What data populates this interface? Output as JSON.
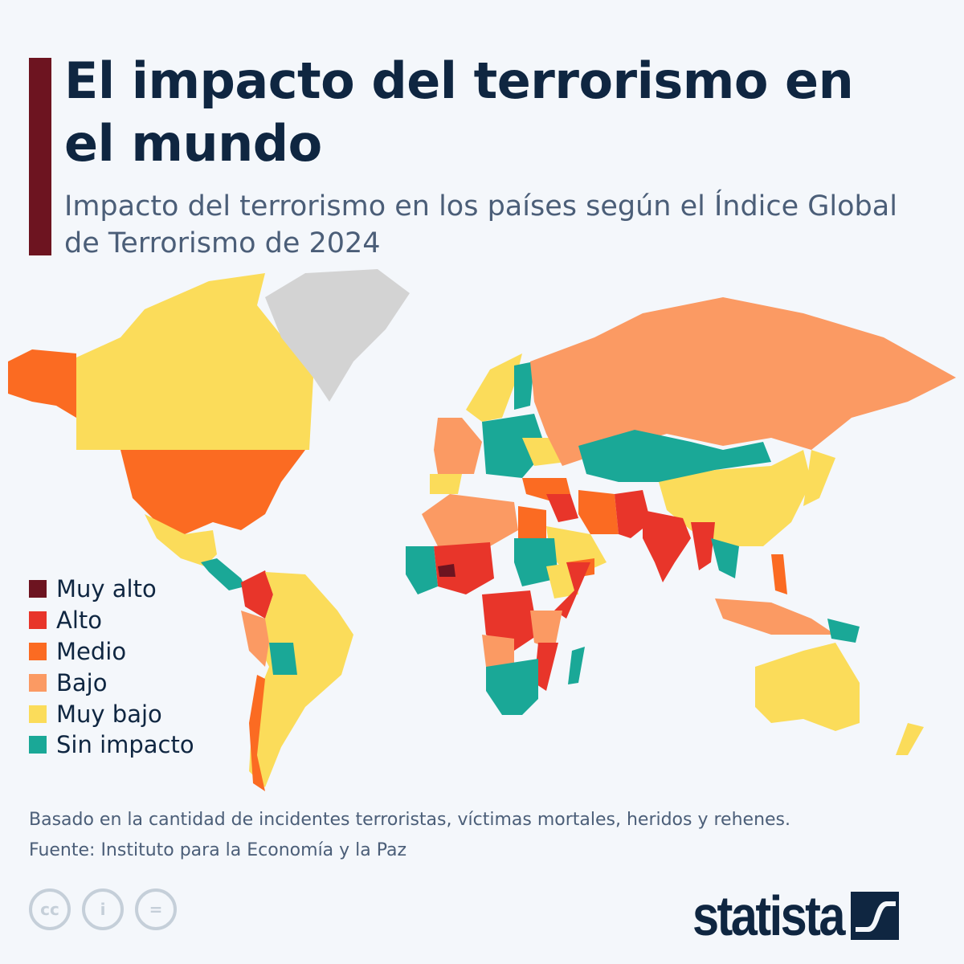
{
  "title": "El impacto del terrorismo en el mundo",
  "subtitle": "Impacto del terrorismo en los países según el Índice Global de Terrorismo de 2024",
  "legend": [
    {
      "label": "Muy alto",
      "color": "#6d1420"
    },
    {
      "label": "Alto",
      "color": "#e8352a"
    },
    {
      "label": "Medio",
      "color": "#fb6b22"
    },
    {
      "label": "Bajo",
      "color": "#fb9a63"
    },
    {
      "label": "Muy bajo",
      "color": "#fbdc5a"
    },
    {
      "label": "Sin impacto",
      "color": "#1aa897"
    }
  ],
  "no_data_color": "#d3d3d3",
  "notes": {
    "basis": "Basado en la cantidad de incidentes terroristas, víctimas mortales, heridos y rehenes.",
    "source": "Fuente: Instituto para la Economía y la Paz"
  },
  "license_icons": [
    "cc-icon",
    "attribution-icon",
    "no-derivatives-icon"
  ],
  "brand": "statista"
}
